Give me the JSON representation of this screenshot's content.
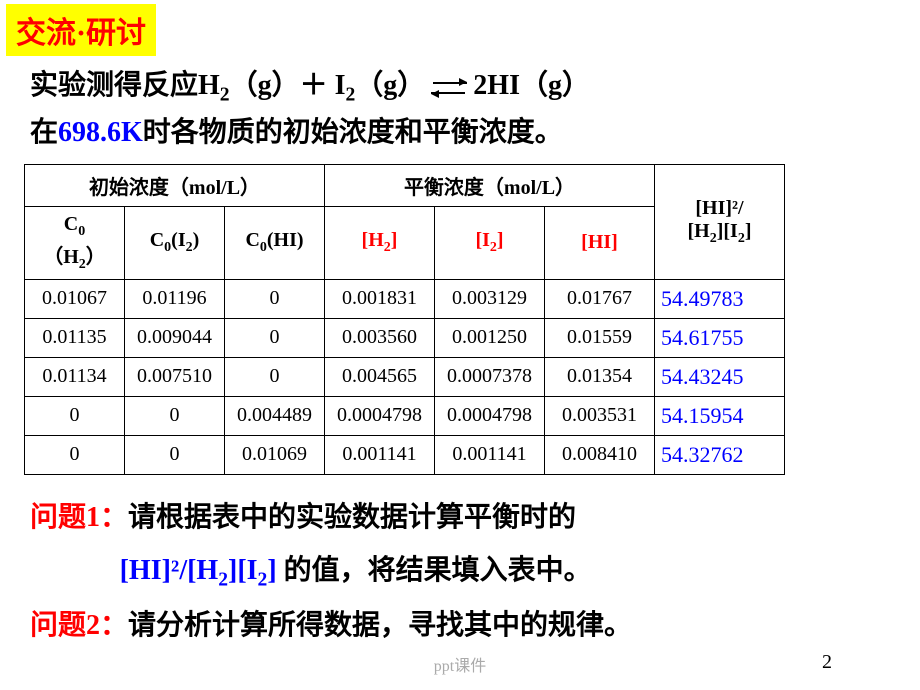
{
  "header": {
    "badge": "交流·研讨"
  },
  "intro": {
    "line1_a": "实验测得反应H",
    "line1_b": "（g）＋ I",
    "line1_c": "（g）",
    "line1_d": "2HI（g）",
    "line2_a": "在",
    "line2_temp": "698.6K",
    "line2_b": "时各物质的初始浓度和平衡浓度。"
  },
  "table": {
    "group1": "初始浓度（mol/L）",
    "group2": "平衡浓度（mol/L）",
    "kcol_top": "[HI]²/",
    "kcol_bot_a": "[H",
    "kcol_bot_b": "][I",
    "kcol_bot_c": "]",
    "h_c0h2_a": "C",
    "h_c0h2_b": "（H",
    "h_c0h2_c": "）",
    "h_c0i2_a": "C",
    "h_c0i2_b": "(I",
    "h_c0i2_c": ")",
    "h_c0hi_a": "C",
    "h_c0hi_b": "(HI)",
    "h_h2_a": "[H",
    "h_h2_b": "]",
    "h_i2_a": "[I",
    "h_i2_b": "]",
    "h_hi": "[HI]",
    "rows": [
      {
        "c0h2": "0.01067",
        "c0i2": "0.01196",
        "c0hi": "0",
        "h2": "0.001831",
        "i2": "0.003129",
        "hi": "0.01767",
        "k": "54.49783"
      },
      {
        "c0h2": "0.01135",
        "c0i2": "0.009044",
        "c0hi": "0",
        "h2": "0.003560",
        "i2": "0.001250",
        "hi": "0.01559",
        "k": "54.61755"
      },
      {
        "c0h2": "0.01134",
        "c0i2": "0.007510",
        "c0hi": "0",
        "h2": "0.004565",
        "i2": "0.0007378",
        "hi": "0.01354",
        "k": "54.43245"
      },
      {
        "c0h2": "0",
        "c0i2": "0",
        "c0hi": "0.004489",
        "h2": "0.0004798",
        "i2": "0.0004798",
        "hi": "0.003531",
        "k": "54.15954"
      },
      {
        "c0h2": "0",
        "c0i2": "0",
        "c0hi": "0.01069",
        "h2": "0.001141",
        "i2": "0.001141",
        "hi": "0.008410",
        "k": "54.32762"
      }
    ]
  },
  "questions": {
    "q1_label": "问题1：",
    "q1_text": "请根据表中的实验数据计算平衡时的",
    "q1_formula_a": "[HI]²/[H",
    "q1_formula_b": "][I",
    "q1_formula_c": "]",
    "q1_tail": " 的值，将结果填入表中。",
    "q2_label": "问题2：",
    "q2_text": "请分析计算所得数据，寻找其中的规律。"
  },
  "footer": {
    "pagenum": "2",
    "watermark": "ppt课件"
  },
  "colors": {
    "badge_bg": "#ffff00",
    "badge_fg": "#ff0000",
    "text": "#000000",
    "red": "#ff0000",
    "blue": "#0000ff",
    "bg": "#ffffff",
    "border": "#000000"
  }
}
